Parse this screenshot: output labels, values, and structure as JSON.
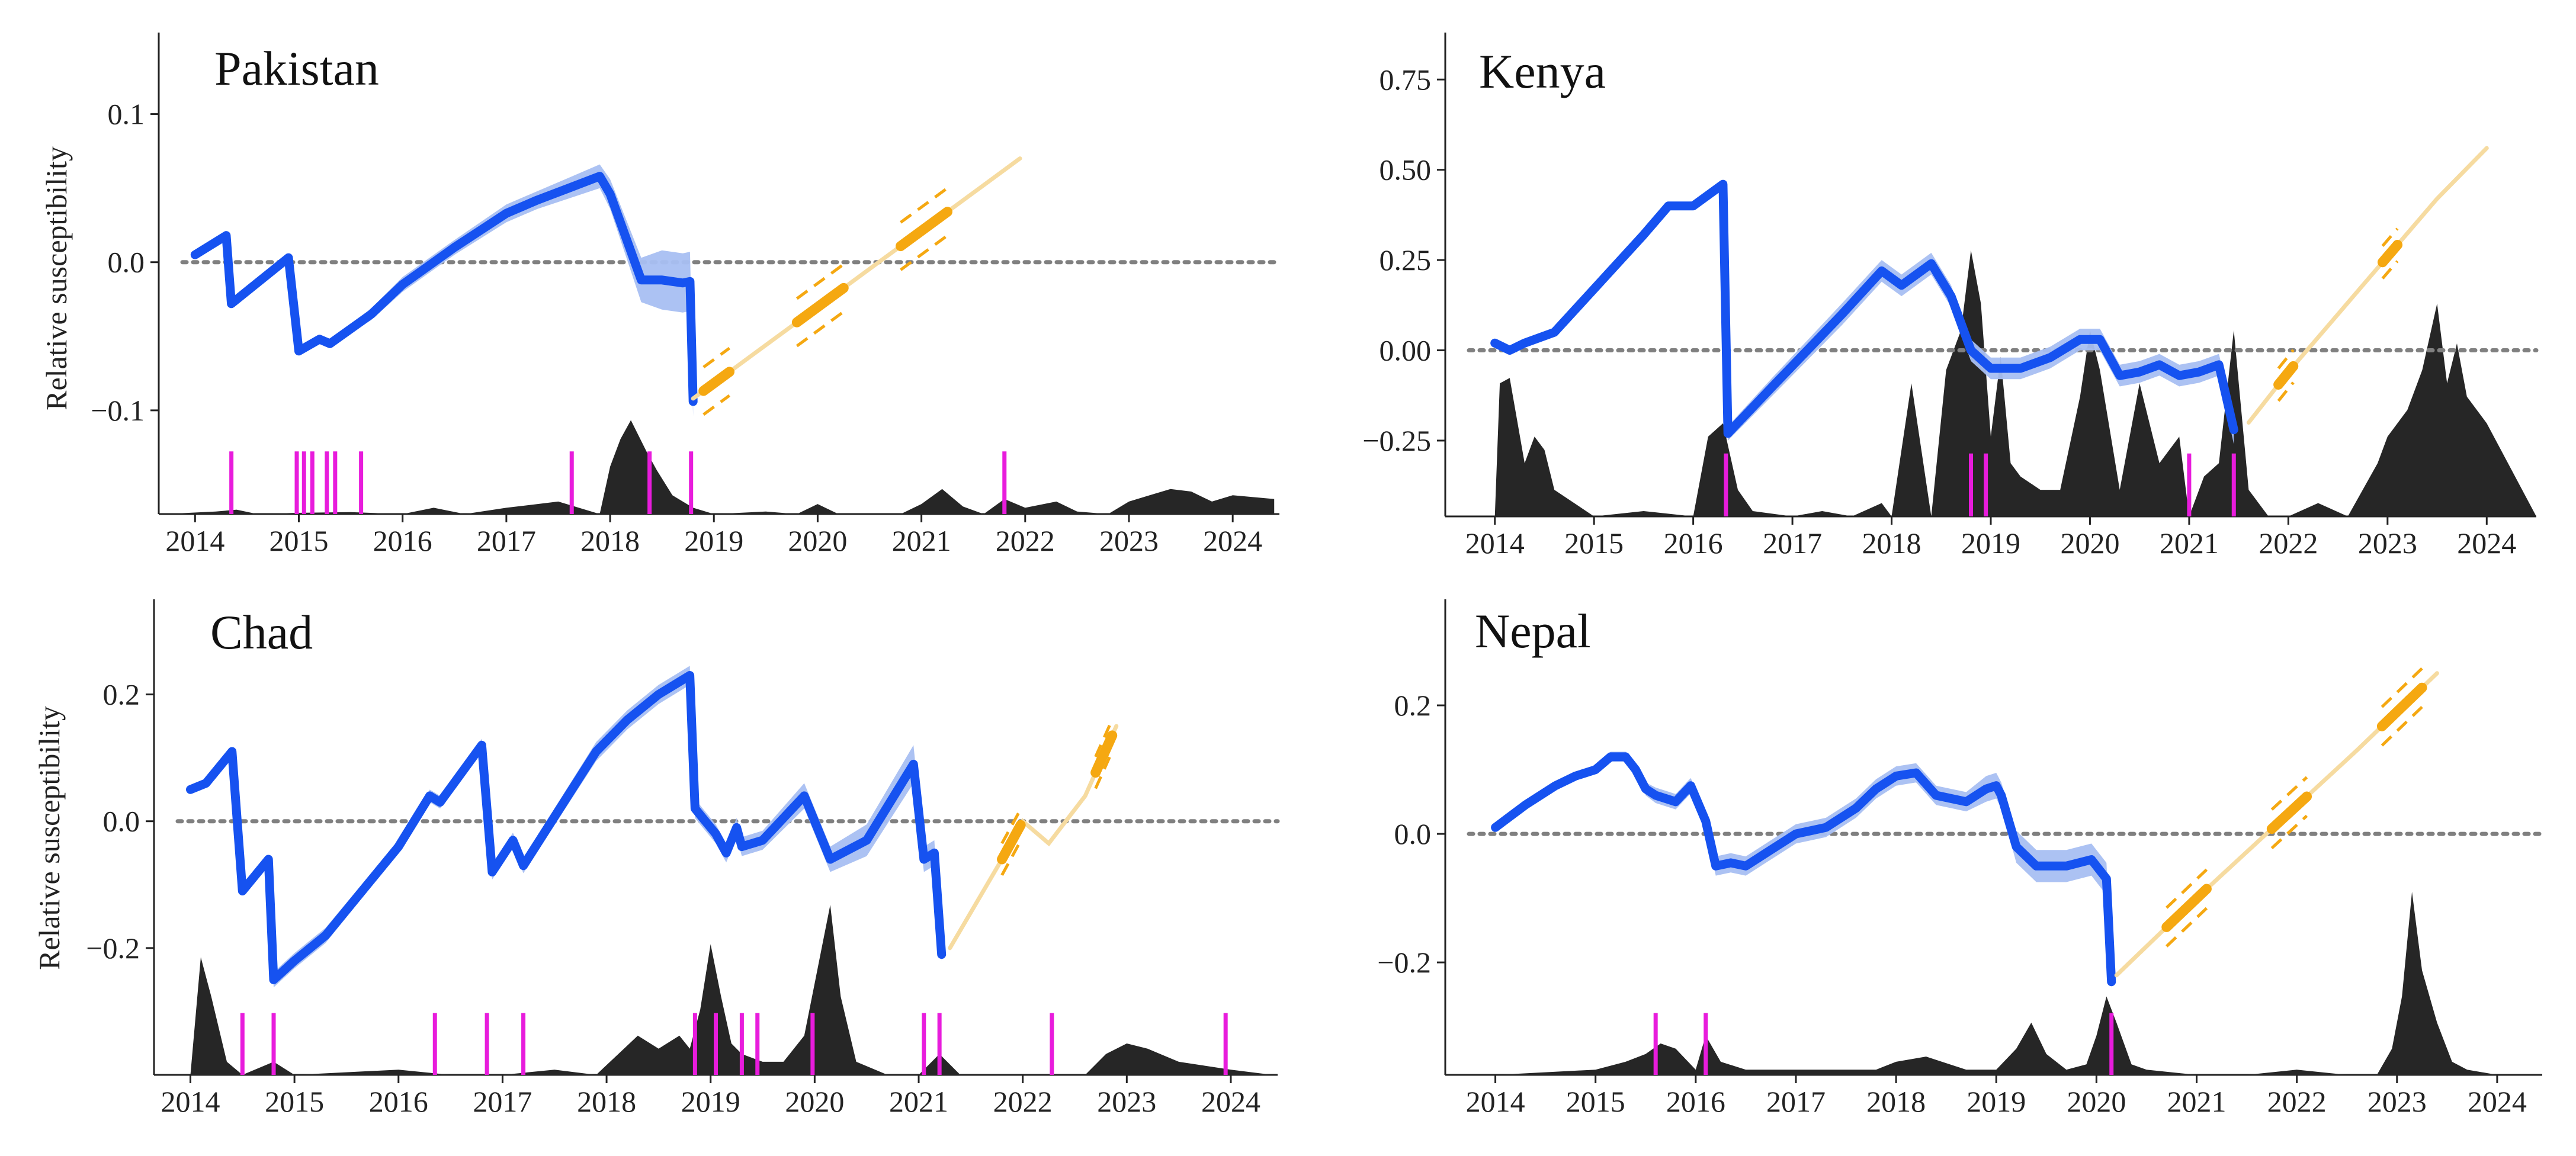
{
  "figure": {
    "colors": {
      "history": "#1652f0",
      "band": "#a8bff2",
      "zero_line": "#808080",
      "projection_light": "#f6dba0",
      "projection_strong": "#f5a811",
      "spikes": "#e81cdc",
      "area": "#262626",
      "axis": "#222222"
    }
  },
  "chart_data": [
    {
      "type": "line",
      "title": "Pakistan",
      "ylabel": "Relative susceptibility",
      "xlabel": "",
      "xlim": [
        2013.65,
        2024.45
      ],
      "ylim": [
        -0.17,
        0.155
      ],
      "yticks": [
        0.1,
        0.0,
        -0.1
      ],
      "ytick_labels": [
        "0.1",
        "0.0",
        "−0.1"
      ],
      "xticks": [
        2014,
        2015,
        2016,
        2017,
        2018,
        2019,
        2020,
        2021,
        2022,
        2023,
        2024
      ],
      "xtick_labels": [
        "2014",
        "2015",
        "2016",
        "2017",
        "2018",
        "2019",
        "2020",
        "2021",
        "2022",
        "2023",
        "2024"
      ],
      "baseline": 0,
      "history": {
        "x": [
          2014.0,
          2014.3,
          2014.35,
          2014.9,
          2015.0,
          2015.2,
          2015.3,
          2015.5,
          2015.7,
          2016.0,
          2016.5,
          2017.0,
          2017.3,
          2017.6,
          2017.9,
          2018.0,
          2018.3,
          2018.5,
          2018.7,
          2018.77,
          2018.8
        ],
        "y": [
          0.005,
          0.018,
          -0.028,
          0.003,
          -0.06,
          -0.052,
          -0.055,
          -0.045,
          -0.035,
          -0.015,
          0.01,
          0.033,
          0.042,
          0.05,
          0.058,
          0.046,
          -0.012,
          -0.012,
          -0.014,
          -0.013,
          -0.094
        ],
        "band": [
          0,
          0,
          0,
          0,
          0.003,
          0.003,
          0.003,
          0.003,
          0.004,
          0.005,
          0.005,
          0.006,
          0.006,
          0.007,
          0.008,
          0.01,
          0.015,
          0.02,
          0.02,
          0.02,
          0.01
        ]
      },
      "projection": {
        "x": [
          2018.8,
          2019.15,
          2019.5,
          2019.85,
          2020.2,
          2020.55,
          2020.9,
          2021.25,
          2021.6,
          2021.95
        ],
        "y": [
          -0.092,
          -0.074,
          -0.056,
          -0.038,
          -0.02,
          -0.002,
          0.016,
          0.034,
          0.052,
          0.07
        ],
        "strong_segments": [
          [
            2018.9,
            2019.15
          ],
          [
            2019.8,
            2020.25
          ],
          [
            2020.8,
            2021.25
          ]
        ],
        "strong_spread": 0.016
      },
      "spikes": [
        2014.35,
        2014.98,
        2015.05,
        2015.13,
        2015.27,
        2015.35,
        2015.6,
        2017.63,
        2018.38,
        2018.78,
        2021.8
      ],
      "spike_height_frac": 0.13,
      "area": {
        "x": [
          2013.7,
          2014.2,
          2014.4,
          2014.6,
          2015.0,
          2015.5,
          2016.0,
          2016.3,
          2016.6,
          2017.0,
          2017.5,
          2017.9,
          2018.0,
          2018.1,
          2018.2,
          2018.35,
          2018.45,
          2018.6,
          2018.8,
          2019.0,
          2019.5,
          2019.8,
          2020.0,
          2020.2,
          2020.6,
          2020.8,
          2021.0,
          2021.2,
          2021.4,
          2021.6,
          2021.8,
          2022.0,
          2022.3,
          2022.5,
          2022.8,
          2023.0,
          2023.2,
          2023.4,
          2023.6,
          2023.8,
          2024.0,
          2024.4
        ],
        "h": [
          0.0,
          0.02,
          0.035,
          0.0,
          0.01,
          0.015,
          0.0,
          0.05,
          0.0,
          0.05,
          0.1,
          0.0,
          0.38,
          0.6,
          0.75,
          0.5,
          0.35,
          0.15,
          0.05,
          0.0,
          0.02,
          0.0,
          0.08,
          0.0,
          0.0,
          0.0,
          0.08,
          0.2,
          0.06,
          0.0,
          0.12,
          0.05,
          0.1,
          0.02,
          0.0,
          0.1,
          0.15,
          0.2,
          0.18,
          0.1,
          0.15,
          0.12
        ],
        "height_frac": 0.26
      }
    },
    {
      "type": "line",
      "title": "Kenya",
      "ylabel": "",
      "xlabel": "",
      "xlim": [
        2013.5,
        2024.5
      ],
      "ylim": [
        -0.46,
        0.88
      ],
      "yticks": [
        0.75,
        0.5,
        0.25,
        0.0,
        -0.25
      ],
      "ytick_labels": [
        "0.75",
        "0.50",
        "0.25",
        "0.00",
        "−0.25"
      ],
      "xticks": [
        2014,
        2015,
        2016,
        2017,
        2018,
        2019,
        2020,
        2021,
        2022,
        2023,
        2024
      ],
      "xtick_labels": [
        "2014",
        "2015",
        "2016",
        "2017",
        "2018",
        "2019",
        "2020",
        "2021",
        "2022",
        "2023",
        "2024"
      ],
      "baseline": 0,
      "history": {
        "x": [
          2014.0,
          2014.15,
          2014.3,
          2014.6,
          2015.0,
          2015.5,
          2015.75,
          2016.0,
          2016.3,
          2016.35,
          2016.8,
          2017.5,
          2017.9,
          2018.1,
          2018.4,
          2018.6,
          2018.8,
          2019.0,
          2019.3,
          2019.6,
          2019.9,
          2020.1,
          2020.3,
          2020.5,
          2020.7,
          2020.9,
          2021.1,
          2021.3,
          2021.45
        ],
        "y": [
          0.02,
          0.0,
          0.02,
          0.05,
          0.17,
          0.32,
          0.4,
          0.4,
          0.46,
          -0.23,
          -0.1,
          0.1,
          0.22,
          0.18,
          0.24,
          0.15,
          0.0,
          -0.05,
          -0.05,
          -0.02,
          0.03,
          0.03,
          -0.07,
          -0.06,
          -0.04,
          -0.07,
          -0.06,
          -0.04,
          -0.22
        ],
        "band": [
          0.005,
          0.005,
          0.005,
          0.005,
          0.008,
          0.01,
          0.01,
          0.012,
          0.012,
          0.02,
          0.025,
          0.03,
          0.03,
          0.03,
          0.03,
          0.03,
          0.03,
          0.03,
          0.03,
          0.03,
          0.03,
          0.03,
          0.03,
          0.03,
          0.03,
          0.03,
          0.03,
          0.03,
          0.04
        ]
      },
      "projection": {
        "x": [
          2021.6,
          2022.0,
          2022.5,
          2023.0,
          2023.5,
          2024.0
        ],
        "y": [
          -0.2,
          -0.06,
          0.1,
          0.26,
          0.42,
          0.56
        ],
        "strong_segments": [
          [
            2021.9,
            2022.05
          ],
          [
            2022.95,
            2023.1
          ]
        ],
        "strong_spread": 0.045
      },
      "spikes": [
        2016.33,
        2018.8,
        2018.95,
        2021.0,
        2021.45
      ],
      "spike_height_frac": 0.13,
      "area": {
        "x": [
          2013.5,
          2014.0,
          2014.05,
          2014.15,
          2014.3,
          2014.4,
          2014.5,
          2014.6,
          2014.8,
          2015.0,
          2015.5,
          2016.0,
          2016.15,
          2016.3,
          2016.45,
          2016.6,
          2017.0,
          2017.3,
          2017.6,
          2017.9,
          2018.0,
          2018.2,
          2018.4,
          2018.55,
          2018.7,
          2018.8,
          2018.9,
          2019.0,
          2019.1,
          2019.2,
          2019.3,
          2019.5,
          2019.7,
          2019.9,
          2020.0,
          2020.1,
          2020.3,
          2020.5,
          2020.7,
          2020.9,
          2021.0,
          2021.15,
          2021.3,
          2021.45,
          2021.6,
          2021.8,
          2022.0,
          2022.3,
          2022.6,
          2022.9,
          2023.0,
          2023.2,
          2023.35,
          2023.5,
          2023.6,
          2023.7,
          2023.8,
          2024.0,
          2024.5
        ],
        "h": [
          0.0,
          0.0,
          0.5,
          0.52,
          0.2,
          0.3,
          0.25,
          0.1,
          0.05,
          0.0,
          0.02,
          0.0,
          0.3,
          0.35,
          0.1,
          0.02,
          0.0,
          0.02,
          0.0,
          0.05,
          0.0,
          0.5,
          0.0,
          0.55,
          0.7,
          1.0,
          0.8,
          0.3,
          0.6,
          0.2,
          0.15,
          0.1,
          0.1,
          0.45,
          0.7,
          0.55,
          0.1,
          0.5,
          0.2,
          0.3,
          0.0,
          0.15,
          0.2,
          0.7,
          0.1,
          0.0,
          0.0,
          0.05,
          0.0,
          0.2,
          0.3,
          0.4,
          0.55,
          0.8,
          0.5,
          0.65,
          0.45,
          0.35,
          0.0
        ],
        "height_frac": 0.55
      }
    },
    {
      "type": "line",
      "title": "Chad",
      "ylabel": "Relative susceptibility",
      "xlabel": "",
      "xlim": [
        2013.65,
        2024.45
      ],
      "ylim": [
        -0.4,
        0.35
      ],
      "yticks": [
        0.2,
        0.0,
        -0.2
      ],
      "ytick_labels": [
        "0.2",
        "0.0",
        "−0.2"
      ],
      "xticks": [
        2014,
        2015,
        2016,
        2017,
        2018,
        2019,
        2020,
        2021,
        2022,
        2023,
        2024
      ],
      "xtick_labels": [
        "2014",
        "2015",
        "2016",
        "2017",
        "2018",
        "2019",
        "2020",
        "2021",
        "2022",
        "2023",
        "2024"
      ],
      "baseline": 0,
      "history": {
        "x": [
          2014.0,
          2014.15,
          2014.4,
          2014.5,
          2014.75,
          2014.8,
          2015.0,
          2015.3,
          2016.0,
          2016.3,
          2016.4,
          2016.8,
          2016.9,
          2017.1,
          2017.2,
          2017.9,
          2018.2,
          2018.5,
          2018.8,
          2018.85,
          2018.95,
          2019.05,
          2019.15,
          2019.25,
          2019.3,
          2019.5,
          2019.9,
          2020.15,
          2020.5,
          2020.95,
          2021.05,
          2021.15,
          2021.22
        ],
        "y": [
          0.05,
          0.06,
          0.11,
          -0.11,
          -0.06,
          -0.25,
          -0.22,
          -0.18,
          -0.04,
          0.04,
          0.03,
          0.12,
          -0.08,
          -0.03,
          -0.07,
          0.11,
          0.16,
          0.2,
          0.23,
          0.02,
          0.0,
          -0.02,
          -0.05,
          -0.01,
          -0.04,
          -0.03,
          0.04,
          -0.06,
          -0.03,
          0.09,
          -0.06,
          -0.05,
          -0.21
        ],
        "band": [
          0,
          0,
          0,
          0.005,
          0.005,
          0.012,
          0.012,
          0.012,
          0.01,
          0.01,
          0.01,
          0.01,
          0.012,
          0.012,
          0.012,
          0.015,
          0.015,
          0.015,
          0.015,
          0.015,
          0.015,
          0.015,
          0.015,
          0.015,
          0.015,
          0.015,
          0.02,
          0.02,
          0.025,
          0.03,
          0.02,
          0.02,
          0.01
        ]
      },
      "projection": {
        "x": [
          2021.3,
          2021.8,
          2022.0,
          2022.25,
          2022.6,
          2022.9
        ],
        "y": [
          -0.2,
          -0.06,
          0.0,
          -0.035,
          0.04,
          0.15
        ],
        "strong_segments": [
          [
            2021.8,
            2021.98
          ],
          [
            2022.7,
            2022.86
          ]
        ],
        "strong_spread": 0.025
      },
      "spikes": [
        2014.5,
        2014.8,
        2016.35,
        2016.85,
        2017.2,
        2018.85,
        2019.05,
        2019.3,
        2019.45,
        2019.98,
        2021.05,
        2021.2,
        2022.28,
        2023.95
      ],
      "spike_height_frac": 0.13,
      "area": {
        "x": [
          2013.7,
          2014.0,
          2014.1,
          2014.2,
          2014.35,
          2014.5,
          2014.8,
          2015.0,
          2016.0,
          2016.5,
          2016.8,
          2017.0,
          2017.5,
          2017.9,
          2018.3,
          2018.5,
          2018.7,
          2018.8,
          2018.9,
          2019.0,
          2019.1,
          2019.2,
          2019.3,
          2019.5,
          2019.7,
          2019.9,
          2020.0,
          2020.15,
          2020.25,
          2020.4,
          2020.7,
          2021.0,
          2021.2,
          2021.4,
          2022.0,
          2022.6,
          2022.8,
          2023.0,
          2023.2,
          2023.5,
          2024.0,
          2024.4
        ],
        "h": [
          0.0,
          0.0,
          0.45,
          0.3,
          0.05,
          0.0,
          0.05,
          0.0,
          0.02,
          0.0,
          0.0,
          0.0,
          0.02,
          0.0,
          0.15,
          0.1,
          0.15,
          0.1,
          0.25,
          0.5,
          0.3,
          0.12,
          0.08,
          0.05,
          0.05,
          0.15,
          0.35,
          0.65,
          0.3,
          0.05,
          0.0,
          0.0,
          0.08,
          0.0,
          0.0,
          0.0,
          0.08,
          0.12,
          0.1,
          0.05,
          0.02,
          0.0
        ],
        "height_frac": 0.55
      }
    },
    {
      "type": "line",
      "title": "Nepal",
      "ylabel": "",
      "xlabel": "",
      "xlim": [
        2013.5,
        2024.45
      ],
      "ylim": [
        -0.375,
        0.365
      ],
      "yticks": [
        0.2,
        0.0,
        -0.2
      ],
      "ytick_labels": [
        "0.2",
        "0.0",
        "−0.2"
      ],
      "xticks": [
        2014,
        2015,
        2016,
        2017,
        2018,
        2019,
        2020,
        2021,
        2022,
        2023,
        2024
      ],
      "xtick_labels": [
        "2014",
        "2015",
        "2016",
        "2017",
        "2018",
        "2019",
        "2020",
        "2021",
        "2022",
        "2023",
        "2024"
      ],
      "baseline": 0,
      "history": {
        "x": [
          2014.0,
          2014.3,
          2014.6,
          2014.8,
          2015.0,
          2015.15,
          2015.3,
          2015.4,
          2015.5,
          2015.6,
          2015.8,
          2015.95,
          2016.1,
          2016.2,
          2016.35,
          2016.5,
          2016.7,
          2017.0,
          2017.3,
          2017.6,
          2017.8,
          2018.0,
          2018.2,
          2018.4,
          2018.7,
          2018.9,
          2019.0,
          2019.05,
          2019.2,
          2019.4,
          2019.7,
          2019.95,
          2020.1,
          2020.15
        ],
        "y": [
          0.01,
          0.045,
          0.075,
          0.09,
          0.1,
          0.12,
          0.12,
          0.1,
          0.07,
          0.06,
          0.05,
          0.075,
          0.02,
          -0.05,
          -0.045,
          -0.05,
          -0.03,
          0.0,
          0.01,
          0.04,
          0.07,
          0.09,
          0.095,
          0.06,
          0.05,
          0.07,
          0.075,
          0.06,
          -0.02,
          -0.05,
          -0.05,
          -0.04,
          -0.07,
          -0.23
        ],
        "band": [
          0.004,
          0.005,
          0.005,
          0.006,
          0.006,
          0.008,
          0.008,
          0.008,
          0.01,
          0.012,
          0.012,
          0.012,
          0.015,
          0.015,
          0.015,
          0.015,
          0.015,
          0.015,
          0.015,
          0.015,
          0.015,
          0.015,
          0.015,
          0.015,
          0.015,
          0.02,
          0.02,
          0.02,
          0.025,
          0.025,
          0.025,
          0.025,
          0.025,
          0.01
        ]
      },
      "projection": {
        "x": [
          2020.2,
          2021.0,
          2021.8,
          2022.6,
          2023.4
        ],
        "y": [
          -0.22,
          -0.1,
          0.015,
          0.13,
          0.25
        ],
        "strong_segments": [
          [
            2020.7,
            2021.1
          ],
          [
            2021.75,
            2022.1
          ],
          [
            2022.85,
            2023.25
          ]
        ],
        "strong_spread": 0.03
      },
      "spikes": [
        2015.6,
        2016.1,
        2020.15
      ],
      "spike_height_frac": 0.13,
      "area": {
        "x": [
          2013.5,
          2014.0,
          2015.0,
          2015.3,
          2015.5,
          2015.65,
          2015.8,
          2016.0,
          2016.1,
          2016.25,
          2016.5,
          2017.0,
          2017.5,
          2017.8,
          2018.0,
          2018.3,
          2018.7,
          2019.0,
          2019.2,
          2019.35,
          2019.5,
          2019.7,
          2019.9,
          2020.0,
          2020.1,
          2020.2,
          2020.35,
          2020.5,
          2021.0,
          2021.5,
          2022.0,
          2022.5,
          2022.8,
          2022.95,
          2023.05,
          2023.15,
          2023.25,
          2023.4,
          2023.55,
          2023.7,
          2024.0,
          2024.45
        ],
        "h": [
          0.0,
          0.0,
          0.02,
          0.05,
          0.08,
          0.12,
          0.1,
          0.02,
          0.15,
          0.05,
          0.02,
          0.02,
          0.02,
          0.02,
          0.05,
          0.07,
          0.02,
          0.02,
          0.1,
          0.2,
          0.08,
          0.02,
          0.04,
          0.15,
          0.3,
          0.2,
          0.04,
          0.02,
          0.0,
          0.0,
          0.02,
          0.0,
          0.0,
          0.1,
          0.3,
          0.7,
          0.4,
          0.2,
          0.05,
          0.02,
          0.0,
          0.0
        ],
        "height_frac": 0.55
      }
    }
  ]
}
